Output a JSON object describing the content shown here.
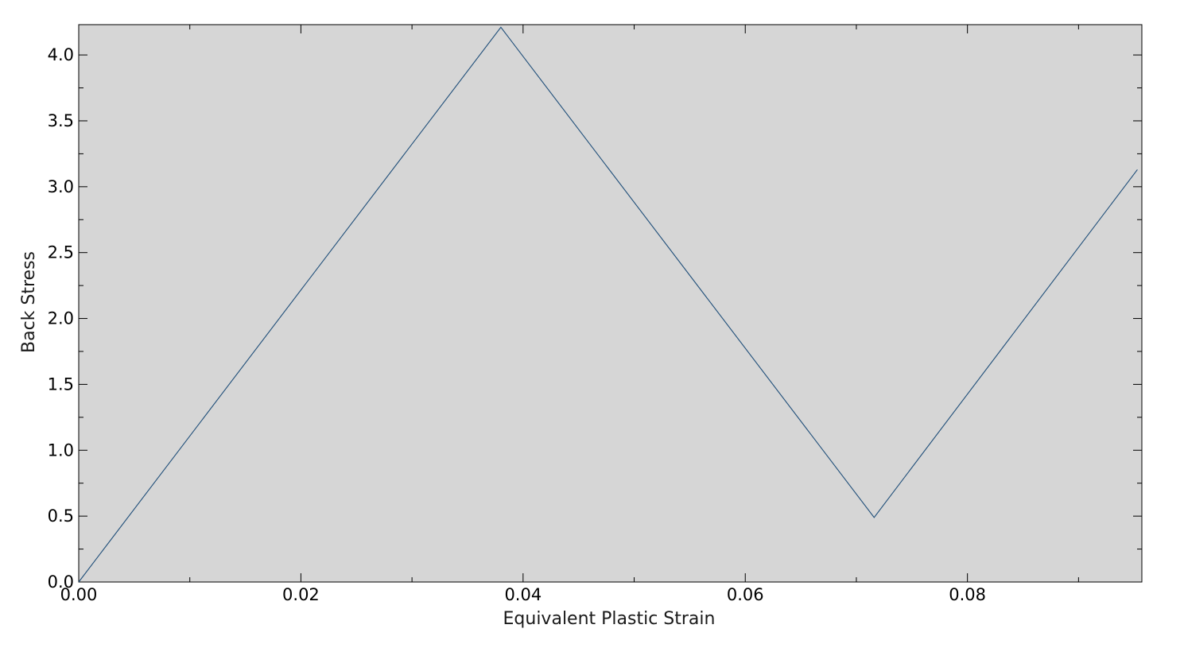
{
  "chart_data": {
    "type": "line",
    "title": "",
    "xlabel": "Equivalent Plastic Strain",
    "ylabel": "Back Stress",
    "xlim": [
      0,
      0.0957
    ],
    "ylim": [
      0,
      4.23
    ],
    "x_ticks": [
      0.0,
      0.02,
      0.04,
      0.06,
      0.08
    ],
    "x_tick_labels": [
      "0.00",
      "0.02",
      "0.04",
      "0.06",
      "0.08"
    ],
    "x_minor_step": 0.01,
    "y_ticks": [
      0.0,
      0.5,
      1.0,
      1.5,
      2.0,
      2.5,
      3.0,
      3.5,
      4.0
    ],
    "y_tick_labels": [
      "0.0",
      "0.5",
      "1.0",
      "1.5",
      "2.0",
      "2.5",
      "3.0",
      "3.5",
      "4.0"
    ],
    "y_minor_step": 0.25,
    "grid": false,
    "legend": "none",
    "series": [
      {
        "x": [
          0.0,
          0.038,
          0.0716,
          0.0953
        ],
        "y": [
          0.0,
          4.21,
          0.49,
          3.13
        ]
      }
    ],
    "colors": {
      "plot_background": "#d6d6d6",
      "line": "#1f4e79",
      "frame": "#000000"
    }
  }
}
